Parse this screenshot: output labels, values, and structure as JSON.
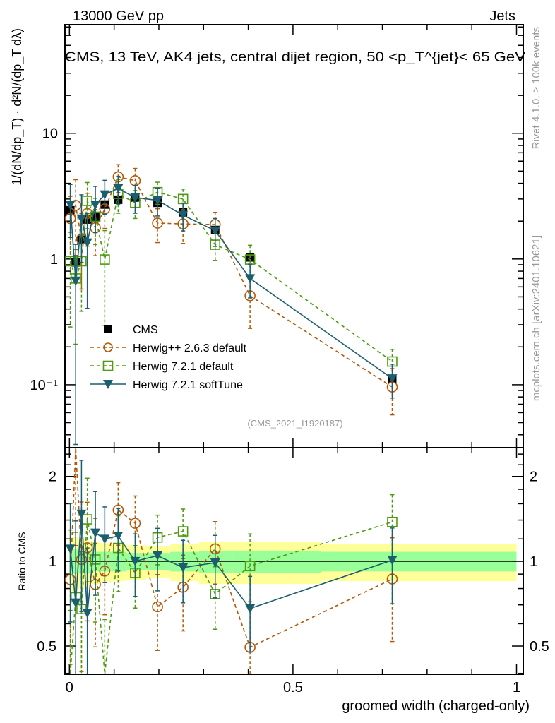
{
  "header": {
    "left": "13000 GeV pp",
    "right": "Jets"
  },
  "side": {
    "rivet": "Rivet 4.1.0, ≥ 100k events",
    "mcplots": "mcplots.cern.ch [arXiv:2401.10621]"
  },
  "chart_data": {
    "type": "scatter",
    "title": "CMS, 13 TeV, AK4 jets, central dijet region, 50 <p_T^{jet}< 65 GeV",
    "xlabel": "groomed width (charged-only)",
    "ylabel": "1/(dN/dp_T) · d²N/(dp_T dλ)",
    "ratio_ylabel": "Ratio to CMS",
    "analysis_id": "(CMS_2021_I1920187)",
    "xlim": [
      -0.01,
      1.015
    ],
    "ylim": [
      0.0316,
      73
    ],
    "yscale": "log",
    "ratio_ylim": [
      0.397,
      2.53
    ],
    "x_ticks": [
      {
        "v": 0,
        "label": "0"
      },
      {
        "v": 0.5,
        "label": "0.5"
      },
      {
        "v": 1,
        "label": "1"
      }
    ],
    "y_ticks": [
      {
        "v": 10,
        "label": "10"
      },
      {
        "v": 1,
        "label": "1"
      },
      {
        "v": 0.1,
        "label": "10⁻¹"
      }
    ],
    "ratio_ticks": [
      {
        "v": 2,
        "label": "2"
      },
      {
        "v": 1,
        "label": "1"
      },
      {
        "v": 0.5,
        "label": "0.5"
      }
    ],
    "x": [
      0.002,
      0.014,
      0.027,
      0.04,
      0.058,
      0.079,
      0.109,
      0.147,
      0.197,
      0.254,
      0.326,
      0.404,
      0.722
    ],
    "band_yellow": [
      0.22,
      0.22,
      0.2,
      0.18,
      0.17,
      0.16,
      0.15,
      0.14,
      0.13,
      0.15,
      0.17,
      0.17,
      0.15
    ],
    "band_green": [
      0.1,
      0.1,
      0.09,
      0.09,
      0.08,
      0.08,
      0.08,
      0.07,
      0.07,
      0.08,
      0.09,
      0.09,
      0.08
    ],
    "series": [
      {
        "name": "CMS",
        "marker": "square",
        "color": "#000000",
        "dash": false,
        "values": [
          2.44,
          0.94,
          1.42,
          2.06,
          2.14,
          2.71,
          2.96,
          3.08,
          2.8,
          2.35,
          1.7,
          1.03,
          0.111
        ],
        "rel_err": [
          0,
          0,
          0,
          0,
          0,
          0,
          0,
          0,
          0,
          0,
          0,
          0,
          0
        ]
      },
      {
        "name": "Herwig++ 2.6.3 default",
        "marker": "circle",
        "color": "#b35806",
        "dash": true,
        "values": [
          2.1,
          2.67,
          1.44,
          2.3,
          1.77,
          2.5,
          4.5,
          4.2,
          1.93,
          1.9,
          1.88,
          0.51,
          0.096
        ],
        "rel_err": [
          0.5,
          0.6,
          0.6,
          0.45,
          0.4,
          0.3,
          0.25,
          0.25,
          0.3,
          0.3,
          0.25,
          0.45,
          0.4
        ]
      },
      {
        "name": "Herwig 7.2.1 default",
        "marker": "opensquare",
        "color": "#4d9a0e",
        "dash": true,
        "values": [
          0.96,
          0.7,
          0.96,
          2.9,
          2.17,
          0.99,
          3.3,
          2.8,
          3.4,
          3.0,
          1.3,
          0.99,
          0.153
        ],
        "rel_err": [
          0.7,
          0.7,
          0.6,
          0.4,
          0.4,
          0.7,
          0.3,
          0.25,
          0.2,
          0.2,
          0.25,
          0.3,
          0.25
        ]
      },
      {
        "name": "Herwig 7.2.1 softTune",
        "marker": "triangle",
        "color": "#1b5e6e",
        "dash": false,
        "values": [
          2.7,
          0.67,
          2.09,
          1.35,
          2.7,
          3.25,
          3.64,
          3.08,
          2.93,
          2.23,
          1.68,
          0.7,
          0.112
        ],
        "rel_err": [
          0.45,
          0.95,
          0.55,
          0.7,
          0.4,
          0.3,
          0.25,
          0.25,
          0.25,
          0.25,
          0.25,
          0.3,
          0.3
        ]
      }
    ],
    "legend_position": "middle-left"
  }
}
